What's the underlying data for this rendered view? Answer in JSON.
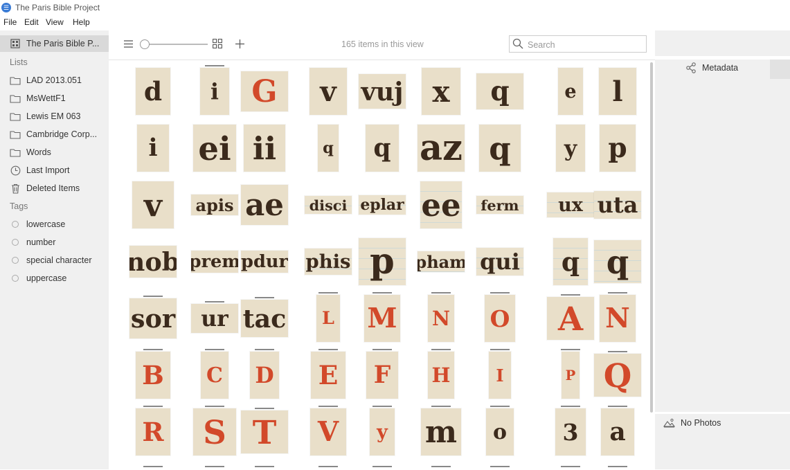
{
  "window": {
    "title": "The Paris Bible Project"
  },
  "menu": [
    "File",
    "Edit",
    "View",
    "Help"
  ],
  "sidebar": {
    "library": "The Paris Bible P...",
    "lists_heading": "Lists",
    "lists": [
      "LAD 2013.051",
      "MsWettF1",
      "Lewis EM 063",
      "Cambridge Corp...",
      "Words"
    ],
    "last_import": "Last Import",
    "deleted_items": "Deleted Items",
    "tags_heading": "Tags",
    "tags": [
      "lowercase",
      "number",
      "special character",
      "uppercase"
    ]
  },
  "toolbar": {
    "count_text": "165 items in this view",
    "search_placeholder": "Search",
    "zoom_level": 0.05
  },
  "right_panel": {
    "metadata_label": "Metadata",
    "no_photos_label": "No Photos"
  },
  "thumbnails": [
    [
      "d",
      "i",
      "G",
      "v",
      "vuj",
      "x",
      "q",
      "e",
      "l"
    ],
    [
      "i",
      "ei",
      "ii",
      "q",
      "q",
      "az",
      "q",
      "y",
      "p"
    ],
    [
      "v",
      "apis",
      "ae",
      "disci",
      "eplar",
      "ee",
      "ferm",
      "ux",
      "uta"
    ],
    [
      "nob",
      "prem",
      "pdur",
      "phis",
      "p",
      "pham",
      "qui",
      "q",
      "q"
    ],
    [
      "sor",
      "ur",
      "tac",
      "L",
      "M",
      "N",
      "O",
      "A",
      "N"
    ],
    [
      "B",
      "C",
      "D",
      "E",
      "F",
      "H",
      "I",
      "P",
      "Q"
    ],
    [
      "R",
      "S",
      "T",
      "V",
      "y",
      "m",
      "o",
      "3",
      "a"
    ]
  ]
}
